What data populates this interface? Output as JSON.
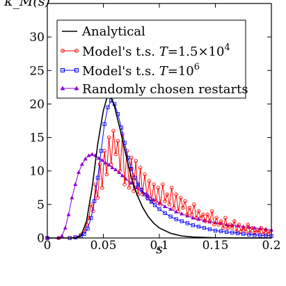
{
  "chart_data": {
    "type": "line",
    "title": "",
    "xlabel": "s",
    "ylabel": "κ_M(s)",
    "xlim": [
      0,
      0.2
    ],
    "ylim": [
      0,
      35
    ],
    "xticks": [
      0,
      0.05,
      0.1,
      0.15,
      0.2
    ],
    "xtick_labels": [
      "0",
      "0.05",
      "0.1",
      "0.15",
      "0.2"
    ],
    "yticks": [
      0,
      5,
      10,
      15,
      20,
      25,
      30
    ],
    "ytick_labels": [
      "0",
      "5",
      "10",
      "15",
      "20",
      "25",
      "30"
    ],
    "grid": false,
    "legend_position": "top-left",
    "legend": [
      {
        "label": "Analytical",
        "color": "#000000",
        "marker": "none"
      },
      {
        "label_main": "Model's t.s. ",
        "label_var": "T",
        "label_eq": "=1.5×10",
        "label_sup": "4",
        "color": "#ff0000",
        "marker": "circle"
      },
      {
        "label_main": "Model's t.s. ",
        "label_var": "T",
        "label_eq": "=10",
        "label_sup": "6",
        "color": "#0000ff",
        "marker": "square"
      },
      {
        "label": "Randomly chosen restarts",
        "color": "#8b00d4",
        "marker": "triangle"
      }
    ],
    "series": [
      {
        "name": "Analytical",
        "color": "#000000",
        "x": [
          0,
          0.025,
          0.03,
          0.035,
          0.04,
          0.045,
          0.05,
          0.053,
          0.055,
          0.058,
          0.06,
          0.065,
          0.07,
          0.075,
          0.08,
          0.085,
          0.09,
          0.095,
          0.1,
          0.11,
          0.12,
          0.13,
          0.14,
          0.15,
          0.17,
          0.2
        ],
        "y": [
          0,
          0,
          0.3,
          2.5,
          7.5,
          14.0,
          19.0,
          20.8,
          21.2,
          20.6,
          19.6,
          16.2,
          12.5,
          9.0,
          6.5,
          4.6,
          3.2,
          2.2,
          1.5,
          0.7,
          0.3,
          0.15,
          0.08,
          0.04,
          0.01,
          0
        ]
      },
      {
        "name": "Model's t.s. T=1.5×10^4",
        "color": "#ff0000",
        "x": [
          0,
          0.01,
          0.02,
          0.025,
          0.03,
          0.033,
          0.035,
          0.037,
          0.039,
          0.041,
          0.043,
          0.045,
          0.047,
          0.049,
          0.051,
          0.053,
          0.055,
          0.057,
          0.059,
          0.061,
          0.063,
          0.065,
          0.067,
          0.069,
          0.071,
          0.073,
          0.075,
          0.077,
          0.079,
          0.081,
          0.083,
          0.085,
          0.087,
          0.089,
          0.091,
          0.093,
          0.095,
          0.097,
          0.099,
          0.101,
          0.103,
          0.105,
          0.107,
          0.109,
          0.111,
          0.113,
          0.115,
          0.117,
          0.119,
          0.121,
          0.123,
          0.125,
          0.127,
          0.129,
          0.131,
          0.133,
          0.135,
          0.137,
          0.139,
          0.141,
          0.143,
          0.145,
          0.147,
          0.149,
          0.151,
          0.153,
          0.155,
          0.157,
          0.159,
          0.161,
          0.163,
          0.165,
          0.167,
          0.169,
          0.171,
          0.173,
          0.175,
          0.177,
          0.179,
          0.181,
          0.183,
          0.185,
          0.187,
          0.189,
          0.191,
          0.193,
          0.195,
          0.197,
          0.199
        ],
        "y": [
          0,
          0,
          0,
          0.1,
          0.5,
          1.0,
          2.0,
          3.0,
          5.0,
          4.0,
          8.0,
          6.0,
          11.0,
          7.5,
          13.0,
          9.5,
          15.0,
          11.0,
          16.0,
          12.5,
          14.5,
          10.0,
          15.5,
          8.0,
          13.0,
          7.5,
          12.0,
          7.0,
          11.5,
          6.5,
          10.5,
          6.5,
          9.5,
          6.0,
          8.5,
          5.5,
          8.0,
          5.5,
          7.5,
          5.0,
          8.0,
          5.5,
          6.5,
          5.0,
          7.5,
          4.5,
          6.5,
          4.0,
          6.0,
          4.5,
          5.5,
          3.5,
          4.5,
          3.5,
          5.0,
          3.0,
          4.0,
          3.0,
          3.5,
          2.5,
          3.5,
          2.5,
          4.0,
          2.0,
          3.0,
          2.0,
          2.5,
          1.5,
          3.0,
          1.5,
          2.0,
          1.5,
          2.5,
          1.0,
          2.0,
          1.0,
          1.5,
          1.0,
          2.0,
          0.8,
          1.5,
          0.8,
          1.2,
          0.8,
          1.5,
          0.6,
          1.2,
          0.6,
          1.0
        ]
      },
      {
        "name": "Model's t.s. T=10^6",
        "color": "#0000ff",
        "x": [
          0,
          0.02,
          0.025,
          0.03,
          0.033,
          0.036,
          0.039,
          0.042,
          0.045,
          0.048,
          0.051,
          0.054,
          0.057,
          0.06,
          0.063,
          0.066,
          0.069,
          0.072,
          0.075,
          0.078,
          0.081,
          0.084,
          0.087,
          0.09,
          0.093,
          0.096,
          0.1,
          0.105,
          0.11,
          0.115,
          0.12,
          0.125,
          0.13,
          0.135,
          0.14,
          0.145,
          0.15,
          0.155,
          0.16,
          0.165,
          0.17,
          0.175,
          0.18,
          0.185,
          0.19,
          0.195,
          0.2
        ],
        "y": [
          0,
          0,
          0.1,
          0.3,
          0.6,
          1.4,
          3.0,
          5.5,
          9.0,
          13.0,
          17.0,
          19.5,
          20.5,
          20.0,
          18.5,
          16.5,
          14.2,
          12.0,
          10.3,
          9.0,
          8.0,
          7.2,
          6.5,
          5.9,
          5.4,
          4.9,
          4.3,
          3.7,
          3.2,
          2.8,
          2.5,
          2.2,
          1.9,
          1.7,
          1.5,
          1.3,
          1.1,
          1.0,
          0.9,
          0.8,
          0.7,
          0.6,
          0.5,
          0.45,
          0.4,
          0.35,
          0.3
        ]
      },
      {
        "name": "Randomly chosen restarts",
        "color": "#8b00d4",
        "x": [
          0,
          0.01,
          0.013,
          0.016,
          0.019,
          0.022,
          0.025,
          0.028,
          0.031,
          0.034,
          0.037,
          0.04,
          0.043,
          0.046,
          0.049,
          0.052,
          0.055,
          0.058,
          0.061,
          0.064,
          0.067,
          0.07,
          0.075,
          0.08,
          0.085,
          0.09,
          0.095,
          0.1,
          0.105,
          0.11,
          0.115,
          0.12,
          0.125,
          0.13,
          0.135,
          0.14,
          0.145,
          0.15,
          0.155,
          0.16,
          0.165,
          0.17,
          0.175,
          0.18,
          0.185,
          0.19,
          0.195,
          0.2
        ],
        "y": [
          0,
          0,
          0.3,
          1.5,
          3.5,
          6.0,
          8.0,
          9.8,
          11.0,
          11.8,
          12.3,
          12.5,
          12.3,
          11.9,
          11.6,
          11.2,
          10.9,
          10.5,
          10.2,
          9.8,
          9.3,
          8.8,
          8.2,
          7.5,
          6.9,
          6.3,
          5.7,
          5.2,
          4.7,
          4.3,
          3.9,
          3.6,
          3.3,
          3.0,
          2.8,
          2.6,
          2.4,
          2.3,
          2.2,
          2.0,
          1.9,
          1.8,
          1.7,
          1.6,
          1.5,
          1.4,
          1.3,
          1.2
        ]
      }
    ]
  }
}
